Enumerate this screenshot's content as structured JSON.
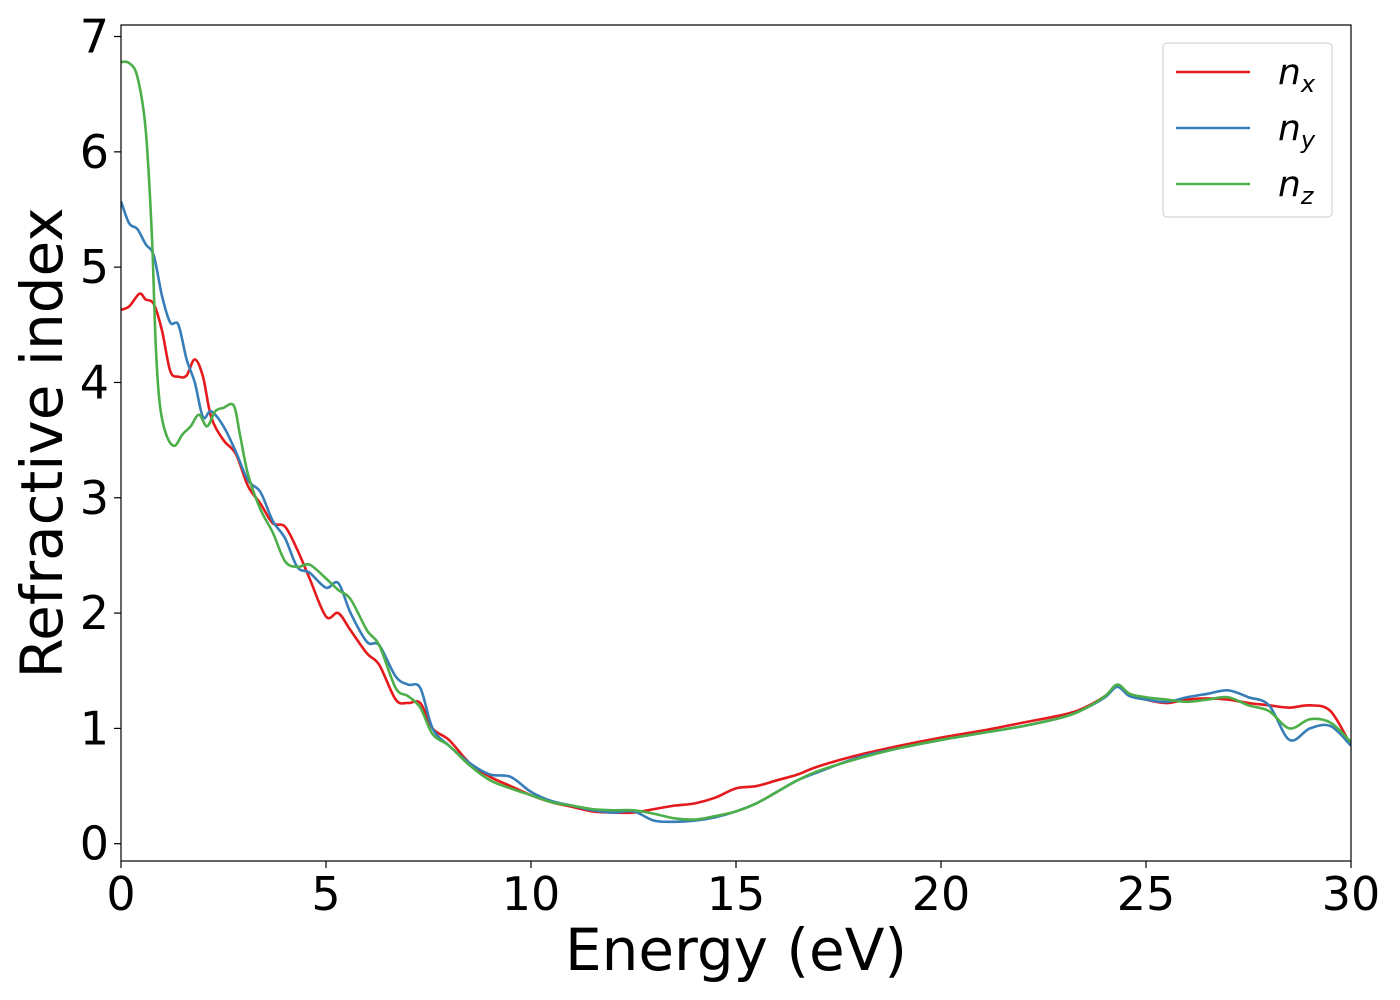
{
  "chart_data": {
    "type": "line",
    "xlabel": "Energy (eV)",
    "ylabel": "Refractive index",
    "xlim": [
      0,
      30
    ],
    "ylim": [
      -0.15,
      7.1
    ],
    "xticks": [
      0,
      5,
      10,
      15,
      20,
      25,
      30
    ],
    "yticks": [
      0,
      1,
      2,
      3,
      4,
      5,
      6,
      7
    ],
    "grid": false,
    "legend_position": "top-right",
    "series": [
      {
        "name": "n_x",
        "legend_base": "n",
        "legend_sub": "x",
        "color": "#e41a1c",
        "x": [
          0,
          0.2,
          0.45,
          0.6,
          0.8,
          1.0,
          1.2,
          1.4,
          1.6,
          1.8,
          2.0,
          2.2,
          2.5,
          2.8,
          3.1,
          3.4,
          3.7,
          4.0,
          4.3,
          4.6,
          5.0,
          5.3,
          5.6,
          6.0,
          6.3,
          6.7,
          7.0,
          7.3,
          7.6,
          8.0,
          8.5,
          9.0,
          9.5,
          10,
          10.5,
          11,
          11.5,
          12,
          12.5,
          13,
          13.5,
          14,
          14.5,
          15,
          15.5,
          16,
          16.5,
          17,
          18,
          19,
          20,
          21,
          22,
          23,
          23.5,
          24,
          24.3,
          24.6,
          25,
          25.5,
          26,
          26.5,
          27,
          27.5,
          28,
          28.5,
          29,
          29.5,
          30
        ],
        "y": [
          4.63,
          4.66,
          4.77,
          4.72,
          4.68,
          4.45,
          4.1,
          4.05,
          4.06,
          4.2,
          4.05,
          3.7,
          3.5,
          3.38,
          3.1,
          2.95,
          2.78,
          2.75,
          2.55,
          2.3,
          1.97,
          2.0,
          1.85,
          1.65,
          1.55,
          1.25,
          1.22,
          1.22,
          1.0,
          0.9,
          0.7,
          0.58,
          0.5,
          0.42,
          0.36,
          0.32,
          0.28,
          0.27,
          0.27,
          0.3,
          0.33,
          0.35,
          0.4,
          0.48,
          0.5,
          0.55,
          0.6,
          0.67,
          0.77,
          0.85,
          0.92,
          0.98,
          1.05,
          1.12,
          1.18,
          1.28,
          1.37,
          1.3,
          1.25,
          1.22,
          1.25,
          1.26,
          1.25,
          1.22,
          1.2,
          1.18,
          1.2,
          1.15,
          0.85
        ]
      },
      {
        "name": "n_y",
        "legend_base": "n",
        "legend_sub": "y",
        "color": "#377eb8",
        "x": [
          0,
          0.2,
          0.4,
          0.6,
          0.8,
          1.0,
          1.2,
          1.4,
          1.6,
          1.8,
          2.0,
          2.2,
          2.5,
          2.8,
          3.1,
          3.4,
          3.7,
          4.0,
          4.3,
          4.6,
          5.0,
          5.3,
          5.6,
          6.0,
          6.3,
          6.7,
          7.0,
          7.3,
          7.6,
          8.0,
          8.5,
          9.0,
          9.5,
          10,
          10.5,
          11,
          11.5,
          12,
          12.5,
          13,
          13.5,
          14,
          14.5,
          15,
          15.5,
          16,
          16.5,
          17,
          18,
          19,
          20,
          21,
          22,
          23,
          23.5,
          24,
          24.3,
          24.6,
          25,
          25.5,
          26,
          26.5,
          27,
          27.5,
          28,
          28.5,
          29,
          29.5,
          30
        ],
        "y": [
          5.57,
          5.38,
          5.33,
          5.2,
          5.1,
          4.75,
          4.52,
          4.5,
          4.2,
          4.0,
          3.7,
          3.75,
          3.62,
          3.4,
          3.15,
          3.05,
          2.8,
          2.65,
          2.4,
          2.35,
          2.22,
          2.26,
          2.0,
          1.75,
          1.72,
          1.45,
          1.38,
          1.35,
          1.0,
          0.85,
          0.7,
          0.6,
          0.58,
          0.45,
          0.37,
          0.33,
          0.29,
          0.27,
          0.28,
          0.2,
          0.19,
          0.2,
          0.23,
          0.28,
          0.35,
          0.45,
          0.55,
          0.62,
          0.75,
          0.83,
          0.9,
          0.96,
          1.02,
          1.1,
          1.17,
          1.27,
          1.36,
          1.28,
          1.25,
          1.23,
          1.27,
          1.3,
          1.33,
          1.27,
          1.2,
          0.9,
          1.0,
          1.02,
          0.85
        ]
      },
      {
        "name": "n_z",
        "legend_base": "n",
        "legend_sub": "z",
        "color": "#4daf4a",
        "x": [
          0,
          0.2,
          0.4,
          0.6,
          0.75,
          0.85,
          0.95,
          1.1,
          1.3,
          1.5,
          1.7,
          1.9,
          2.1,
          2.3,
          2.5,
          2.75,
          2.9,
          3.1,
          3.4,
          3.7,
          4.0,
          4.3,
          4.6,
          5.0,
          5.3,
          5.6,
          6.0,
          6.3,
          6.7,
          7.0,
          7.3,
          7.6,
          8.0,
          8.5,
          9.0,
          9.5,
          10,
          10.5,
          11,
          11.5,
          12,
          12.5,
          13,
          13.5,
          14,
          14.5,
          15,
          15.5,
          16,
          16.5,
          17,
          18,
          19,
          20,
          21,
          22,
          23,
          23.5,
          24,
          24.3,
          24.6,
          25,
          25.5,
          26,
          26.5,
          27,
          27.5,
          28,
          28.5,
          29,
          29.5,
          30
        ],
        "y": [
          6.78,
          6.77,
          6.65,
          6.2,
          5.3,
          4.3,
          3.8,
          3.55,
          3.45,
          3.55,
          3.62,
          3.72,
          3.62,
          3.75,
          3.78,
          3.8,
          3.55,
          3.2,
          2.9,
          2.7,
          2.45,
          2.4,
          2.42,
          2.3,
          2.2,
          2.12,
          1.85,
          1.72,
          1.35,
          1.28,
          1.18,
          0.95,
          0.85,
          0.68,
          0.55,
          0.48,
          0.42,
          0.36,
          0.33,
          0.3,
          0.29,
          0.29,
          0.26,
          0.22,
          0.21,
          0.24,
          0.28,
          0.35,
          0.45,
          0.55,
          0.63,
          0.74,
          0.83,
          0.9,
          0.96,
          1.02,
          1.1,
          1.17,
          1.28,
          1.38,
          1.3,
          1.27,
          1.25,
          1.23,
          1.25,
          1.27,
          1.2,
          1.15,
          1.0,
          1.08,
          1.05,
          0.88
        ]
      }
    ]
  }
}
